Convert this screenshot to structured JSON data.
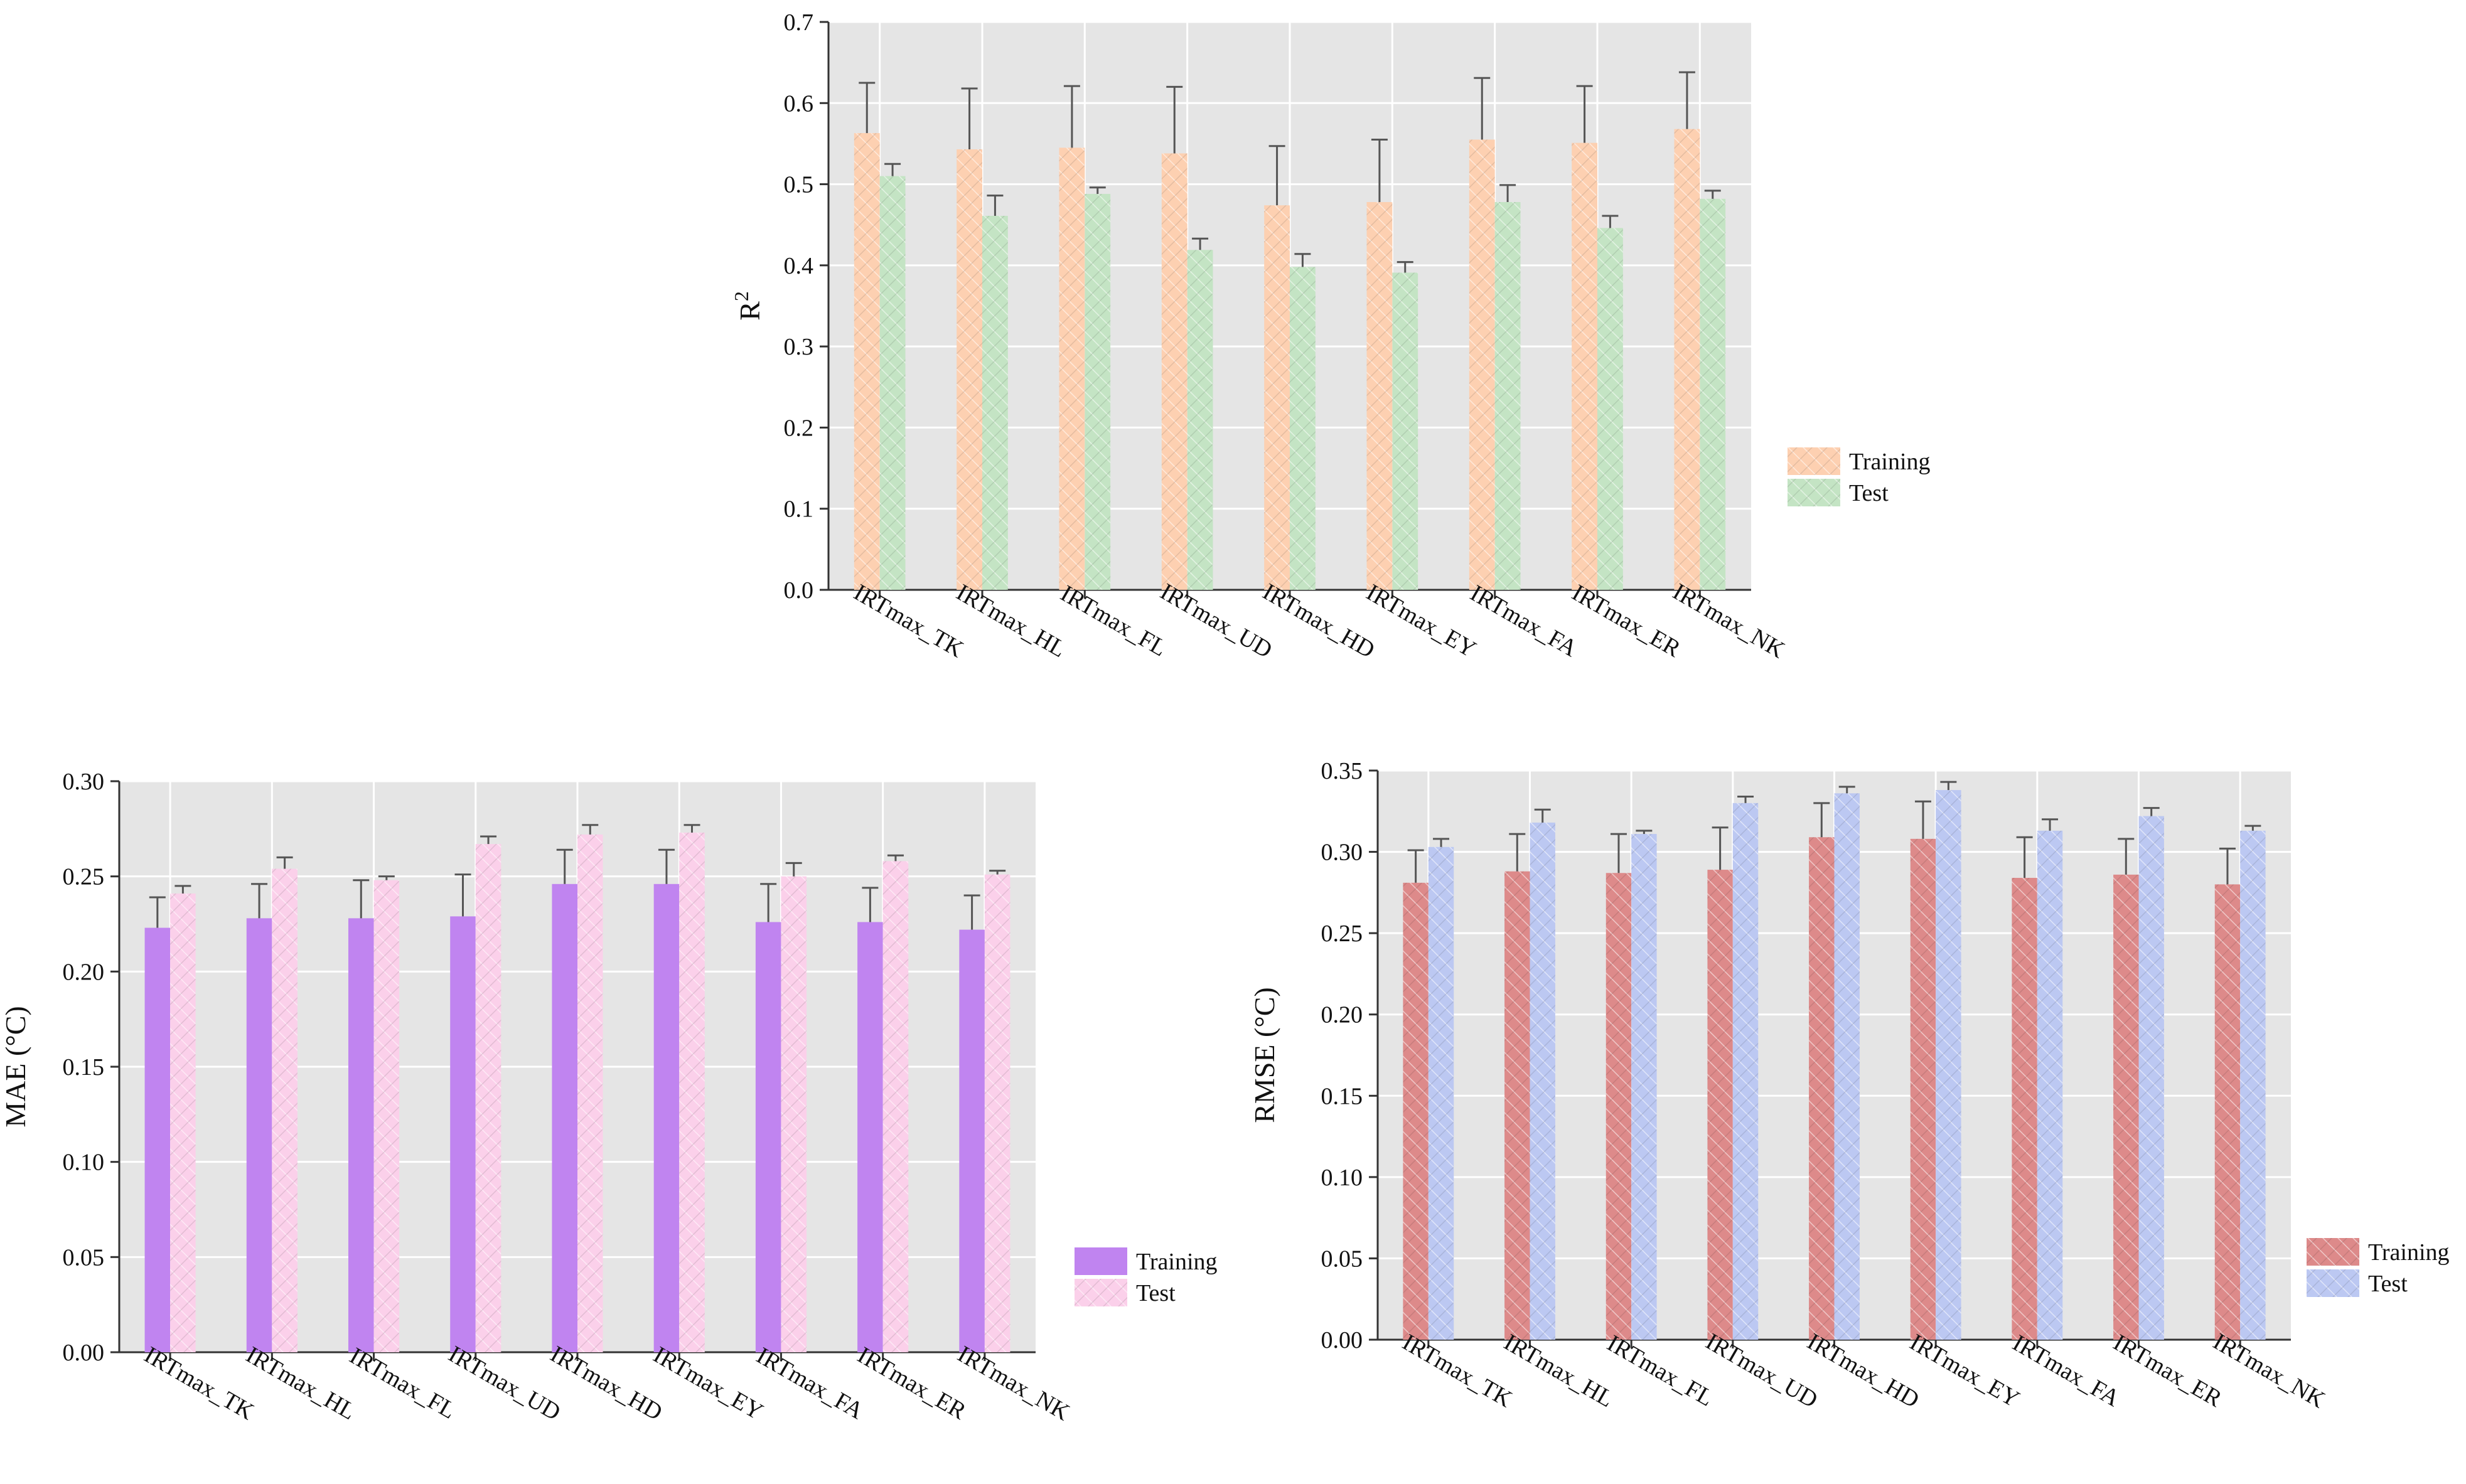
{
  "colors": {
    "panel_bg": "#e5e5e5",
    "grid": "#ffffff",
    "error_bar": "#555555",
    "axis": "#333333"
  },
  "chart_data": [
    {
      "id": "r2",
      "type": "bar",
      "title": "",
      "ylabel": "R",
      "ylabel_sup": "2",
      "xlabel": "",
      "categories": [
        "IRTmax_TK",
        "IRTmax_HL",
        "IRTmax_FL",
        "IRTmax_UD",
        "IRTmax_HD",
        "IRTmax_EY",
        "IRTmax_FA",
        "IRTmax_ER",
        "IRTmax_NK"
      ],
      "ylim": [
        0,
        0.7
      ],
      "yticks": [
        "0.0",
        "0.1",
        "0.2",
        "0.3",
        "0.4",
        "0.5",
        "0.6",
        "0.7"
      ],
      "grid": true,
      "legend_position": "right",
      "series": [
        {
          "name": "Training",
          "color": "#fdd0b1",
          "pattern": "hatch",
          "values": [
            0.563,
            0.543,
            0.545,
            0.538,
            0.474,
            0.478,
            0.555,
            0.551,
            0.568
          ],
          "errors": [
            0.062,
            0.075,
            0.076,
            0.082,
            0.073,
            0.077,
            0.076,
            0.07,
            0.07
          ]
        },
        {
          "name": "Test",
          "color": "#c4e4c4",
          "pattern": "hatch",
          "values": [
            0.51,
            0.461,
            0.488,
            0.419,
            0.398,
            0.391,
            0.478,
            0.446,
            0.482
          ],
          "errors": [
            0.015,
            0.025,
            0.008,
            0.014,
            0.016,
            0.013,
            0.021,
            0.015,
            0.01
          ]
        }
      ]
    },
    {
      "id": "mae",
      "type": "bar",
      "title": "",
      "ylabel": "MAE (°C)",
      "xlabel": "",
      "categories": [
        "IRTmax_TK",
        "IRTmax_HL",
        "IRTmax_FL",
        "IRTmax_UD",
        "IRTmax_HD",
        "IRTmax_EY",
        "IRTmax_FA",
        "IRTmax_ER",
        "IRTmax_NK"
      ],
      "ylim": [
        0,
        0.3
      ],
      "yticks": [
        "0.00",
        "0.05",
        "0.10",
        "0.15",
        "0.20",
        "0.25",
        "0.30"
      ],
      "grid": true,
      "legend_position": "right",
      "series": [
        {
          "name": "Training",
          "color": "#c084f0",
          "pattern": "solid",
          "values": [
            0.223,
            0.228,
            0.228,
            0.229,
            0.246,
            0.246,
            0.226,
            0.226,
            0.222
          ],
          "errors": [
            0.016,
            0.018,
            0.02,
            0.022,
            0.018,
            0.018,
            0.02,
            0.018,
            0.018
          ]
        },
        {
          "name": "Test",
          "color": "#fbd0ea",
          "pattern": "hatch",
          "values": [
            0.241,
            0.254,
            0.248,
            0.267,
            0.272,
            0.273,
            0.25,
            0.258,
            0.251
          ],
          "errors": [
            0.004,
            0.006,
            0.002,
            0.004,
            0.005,
            0.004,
            0.007,
            0.003,
            0.002
          ]
        }
      ]
    },
    {
      "id": "rmse",
      "type": "bar",
      "title": "",
      "ylabel": "RMSE (°C)",
      "xlabel": "",
      "categories": [
        "IRTmax_TK",
        "IRTmax_HL",
        "IRTmax_FL",
        "IRTmax_UD",
        "IRTmax_HD",
        "IRTmax_EY",
        "IRTmax_FA",
        "IRTmax_ER",
        "IRTmax_NK"
      ],
      "ylim": [
        0,
        0.35
      ],
      "yticks": [
        "0.00",
        "0.05",
        "0.10",
        "0.15",
        "0.20",
        "0.25",
        "0.30",
        "0.35"
      ],
      "grid": true,
      "legend_position": "right",
      "series": [
        {
          "name": "Training",
          "color": "#dd8a8a",
          "pattern": "hatch",
          "values": [
            0.281,
            0.288,
            0.287,
            0.289,
            0.309,
            0.308,
            0.284,
            0.286,
            0.28
          ],
          "errors": [
            0.02,
            0.023,
            0.024,
            0.026,
            0.021,
            0.023,
            0.025,
            0.022,
            0.022
          ]
        },
        {
          "name": "Test",
          "color": "#bcc8f2",
          "pattern": "hatch",
          "values": [
            0.303,
            0.318,
            0.311,
            0.33,
            0.336,
            0.338,
            0.313,
            0.322,
            0.313
          ],
          "errors": [
            0.005,
            0.008,
            0.002,
            0.004,
            0.004,
            0.005,
            0.007,
            0.005,
            0.003
          ]
        }
      ]
    }
  ]
}
